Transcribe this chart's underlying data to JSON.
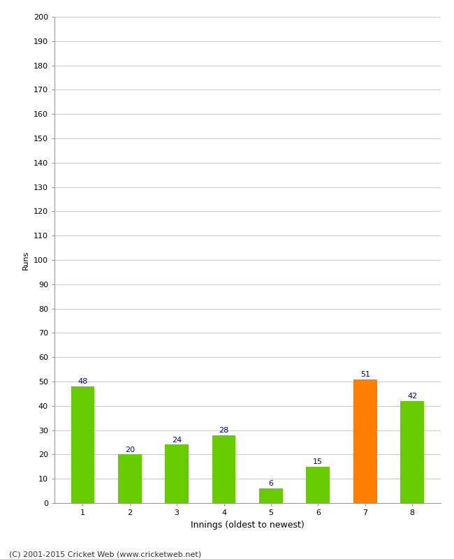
{
  "categories": [
    "1",
    "2",
    "3",
    "4",
    "5",
    "6",
    "7",
    "8"
  ],
  "values": [
    48,
    20,
    24,
    28,
    6,
    15,
    51,
    42
  ],
  "bar_colors": [
    "#66cc00",
    "#66cc00",
    "#66cc00",
    "#66cc00",
    "#66cc00",
    "#66cc00",
    "#ff8000",
    "#66cc00"
  ],
  "xlabel": "Innings (oldest to newest)",
  "ylabel": "Runs",
  "ylim": [
    0,
    200
  ],
  "yticks": [
    0,
    10,
    20,
    30,
    40,
    50,
    60,
    70,
    80,
    90,
    100,
    110,
    120,
    130,
    140,
    150,
    160,
    170,
    180,
    190,
    200
  ],
  "annotation_color": "#000099",
  "annotation_fontsize": 8,
  "background_color": "#ffffff",
  "grid_color": "#cccccc",
  "footer": "(C) 2001-2015 Cricket Web (www.cricketweb.net)",
  "bar_width": 0.5
}
